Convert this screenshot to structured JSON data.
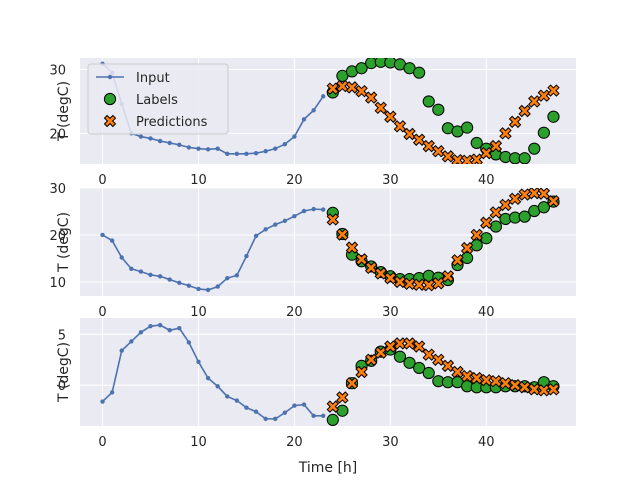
{
  "chart_data": [
    {
      "type": "line",
      "ylabel": "T (degC)",
      "xlim": [
        -2.35,
        49.35
      ],
      "ylim": [
        15.2,
        31.8
      ],
      "xticks": [
        0,
        10,
        20,
        30,
        40
      ],
      "yticks": [
        20,
        30
      ],
      "legend": {
        "position": "top-left",
        "entries": [
          {
            "label": "Input",
            "marker": "line-dot",
            "color": "#4c72b0"
          },
          {
            "label": "Labels",
            "marker": "circle",
            "color": "#2ca02c"
          },
          {
            "label": "Predictions",
            "marker": "x",
            "color": "#ff7f0e"
          }
        ]
      },
      "series": [
        {
          "name": "Input",
          "color": "#4c72b0",
          "x": [
            0,
            1,
            2,
            3,
            4,
            5,
            6,
            7,
            8,
            9,
            10,
            11,
            12,
            13,
            14,
            15,
            16,
            17,
            18,
            19,
            20,
            21,
            22,
            23
          ],
          "values": [
            30.9,
            29.5,
            24.6,
            20.0,
            19.5,
            19.2,
            18.8,
            18.5,
            18.2,
            17.8,
            17.6,
            17.5,
            17.6,
            16.8,
            16.8,
            16.8,
            16.9,
            17.2,
            17.6,
            18.3,
            19.5,
            22.2,
            23.6,
            25.8
          ]
        },
        {
          "name": "Labels",
          "color": "#2ca02c",
          "x": [
            24,
            25,
            26,
            27,
            28,
            29,
            30,
            31,
            32,
            33,
            34,
            35,
            36,
            37,
            38,
            39,
            40,
            41,
            42,
            43,
            44,
            45,
            46,
            47
          ],
          "values": [
            26.4,
            29.0,
            29.7,
            30.2,
            31.0,
            31.2,
            31.1,
            30.8,
            30.2,
            29.5,
            25.0,
            23.7,
            20.8,
            20.3,
            20.9,
            18.5,
            17.6,
            16.7,
            16.3,
            16.1,
            16.1,
            17.6,
            20.1,
            22.6
          ]
        },
        {
          "name": "Predictions",
          "color": "#ff7f0e",
          "x": [
            24,
            25,
            26,
            27,
            28,
            29,
            30,
            31,
            32,
            33,
            34,
            35,
            36,
            37,
            38,
            39,
            40,
            41,
            42,
            43,
            44,
            45,
            46,
            47
          ],
          "values": [
            27.0,
            27.4,
            27.2,
            26.6,
            25.6,
            24.0,
            22.6,
            21.1,
            19.9,
            19.0,
            18.0,
            17.2,
            16.4,
            15.8,
            15.7,
            15.9,
            16.9,
            18.0,
            20.0,
            21.8,
            23.5,
            25.0,
            25.9,
            26.7
          ]
        }
      ]
    },
    {
      "type": "line",
      "ylabel": "T (degC)",
      "xlim": [
        -2.35,
        49.35
      ],
      "ylim": [
        7.0,
        30.0
      ],
      "xticks": [
        0,
        10,
        20,
        30,
        40
      ],
      "yticks": [
        10,
        20,
        30
      ],
      "series": [
        {
          "name": "Input",
          "color": "#4c72b0",
          "x": [
            0,
            1,
            2,
            3,
            4,
            5,
            6,
            7,
            8,
            9,
            10,
            11,
            12,
            13,
            14,
            15,
            16,
            17,
            18,
            19,
            20,
            21,
            22,
            23
          ],
          "values": [
            20.0,
            18.8,
            15.2,
            12.8,
            12.2,
            11.5,
            11.2,
            10.5,
            9.8,
            9.2,
            8.5,
            8.3,
            9.0,
            10.8,
            11.4,
            15.5,
            19.8,
            21.2,
            22.2,
            23.0,
            24.0,
            25.1,
            25.5,
            25.4
          ]
        },
        {
          "name": "Labels",
          "color": "#2ca02c",
          "x": [
            24,
            25,
            26,
            27,
            28,
            29,
            30,
            31,
            32,
            33,
            34,
            35,
            36,
            37,
            38,
            39,
            40,
            41,
            42,
            43,
            44,
            45,
            46,
            47
          ],
          "values": [
            24.7,
            20.2,
            15.8,
            14.4,
            13.3,
            12.1,
            11.2,
            10.6,
            10.6,
            10.8,
            11.3,
            10.9,
            10.4,
            13.6,
            15.1,
            17.8,
            19.3,
            21.8,
            23.4,
            23.7,
            23.9,
            25.1,
            25.9,
            27.1
          ]
        },
        {
          "name": "Predictions",
          "color": "#ff7f0e",
          "x": [
            24,
            25,
            26,
            27,
            28,
            29,
            30,
            31,
            32,
            33,
            34,
            35,
            36,
            37,
            38,
            39,
            40,
            41,
            42,
            43,
            44,
            45,
            46,
            47
          ],
          "values": [
            23.3,
            20.1,
            17.3,
            14.8,
            13.0,
            11.8,
            10.8,
            10.0,
            9.6,
            9.4,
            9.3,
            9.7,
            11.2,
            14.6,
            17.2,
            20.0,
            22.6,
            24.8,
            26.4,
            27.7,
            28.6,
            28.9,
            28.8,
            27.2
          ]
        }
      ]
    },
    {
      "type": "line",
      "ylabel": "T (degC)",
      "xlabel": "Time [h]",
      "xlim": [
        -2.35,
        49.35
      ],
      "ylim": [
        -4.0,
        6.6
      ],
      "xticks": [
        0,
        10,
        20,
        30,
        40
      ],
      "yticks": [
        0,
        5
      ],
      "series": [
        {
          "name": "Input",
          "color": "#4c72b0",
          "x": [
            0,
            1,
            2,
            3,
            4,
            5,
            6,
            7,
            8,
            9,
            10,
            11,
            12,
            13,
            14,
            15,
            16,
            17,
            18,
            19,
            20,
            21,
            22,
            23
          ],
          "values": [
            -1.6,
            -0.7,
            3.4,
            4.3,
            5.2,
            5.8,
            5.9,
            5.4,
            5.6,
            4.2,
            2.3,
            0.7,
            -0.1,
            -1.1,
            -1.5,
            -2.2,
            -2.6,
            -3.3,
            -3.3,
            -2.7,
            -2.0,
            -1.9,
            -3.0,
            -3.0
          ]
        },
        {
          "name": "Labels",
          "color": "#2ca02c",
          "x": [
            24,
            25,
            26,
            27,
            28,
            29,
            30,
            31,
            32,
            33,
            34,
            35,
            36,
            37,
            38,
            39,
            40,
            41,
            42,
            43,
            44,
            45,
            46,
            47
          ],
          "values": [
            -3.4,
            -2.5,
            0.2,
            1.9,
            2.4,
            3.3,
            3.5,
            2.8,
            2.2,
            1.7,
            1.2,
            0.4,
            0.3,
            0.3,
            -0.1,
            -0.2,
            -0.2,
            -0.2,
            -0.1,
            -0.1,
            -0.1,
            -0.2,
            0.3,
            -0.1
          ]
        },
        {
          "name": "Predictions",
          "color": "#ff7f0e",
          "x": [
            24,
            25,
            26,
            27,
            28,
            29,
            30,
            31,
            32,
            33,
            34,
            35,
            36,
            37,
            38,
            39,
            40,
            41,
            42,
            43,
            44,
            45,
            46,
            47
          ],
          "values": [
            -2.1,
            -1.2,
            0.2,
            1.3,
            2.5,
            3.2,
            3.8,
            4.1,
            4.1,
            3.8,
            3.0,
            2.5,
            1.9,
            1.3,
            0.9,
            0.7,
            0.5,
            0.4,
            0.2,
            0.0,
            -0.2,
            -0.4,
            -0.5,
            -0.4
          ]
        }
      ]
    }
  ]
}
